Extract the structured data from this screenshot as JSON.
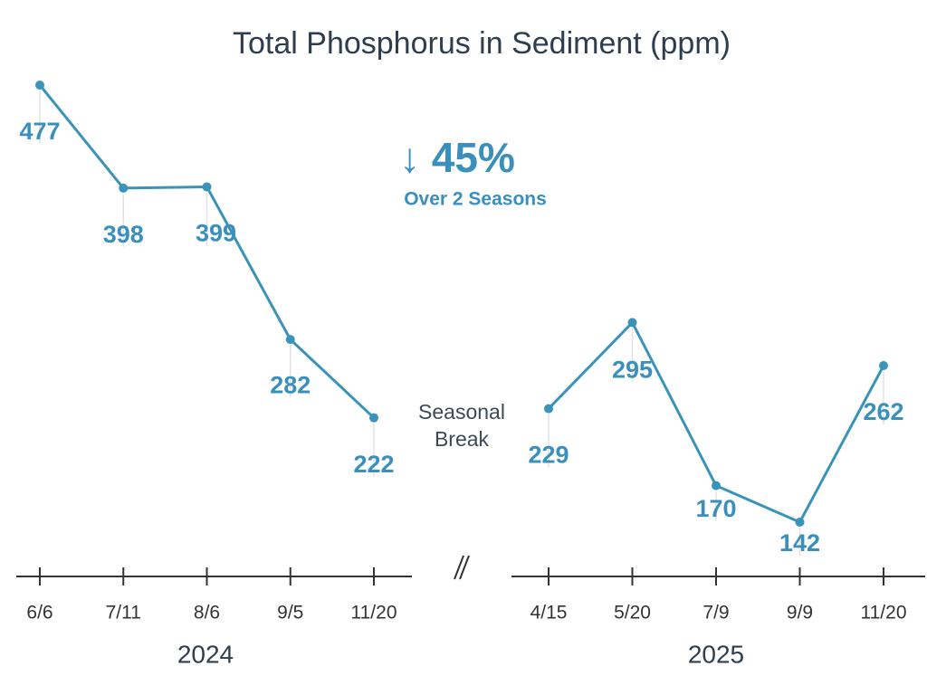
{
  "chart_data": {
    "type": "line",
    "title": "Total Phosphorus in Sediment (ppm)",
    "color": "#3a93b8",
    "headline": "↓ 45%",
    "subheadline": "Over 2 Seasons",
    "break_label": "Seasonal Break",
    "panels": [
      {
        "label": "2024",
        "categories": [
          "6/6",
          "7/11",
          "8/6",
          "9/5",
          "11/20"
        ],
        "values": [
          477,
          398,
          399,
          282,
          222
        ]
      },
      {
        "label": "2025",
        "categories": [
          "4/15",
          "5/20",
          "7/9",
          "9/9",
          "11/20"
        ],
        "values": [
          229,
          295,
          170,
          142,
          262
        ]
      }
    ]
  }
}
